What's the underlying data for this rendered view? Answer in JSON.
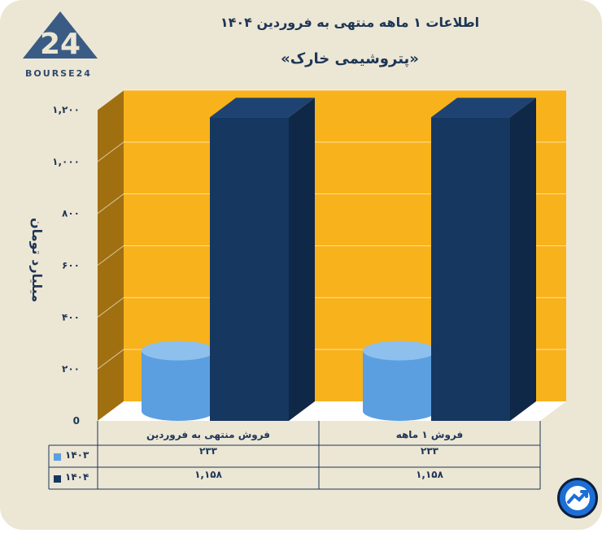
{
  "header": {
    "title": "اطلاعات ۱ ماهه منتهی به فروردین ۱۴۰۴",
    "subtitle": "«پتروشیمی خارک»"
  },
  "brand": {
    "name": "BOURSE24",
    "logo_mark": "24"
  },
  "colors": {
    "series_1403": "#5b9fe0",
    "series_1404": "#163760",
    "plot_back": "#f8b21c",
    "plot_side": "#a07010",
    "text": "#1d3656"
  },
  "chart_data": {
    "type": "bar",
    "title": "اطلاعات ۱ ماهه منتهی به فروردین ۱۴۰۴",
    "subtitle": "«پتروشیمی خارک»",
    "ylabel": "میلیارد تومان",
    "categories": [
      "فروش منتهی به  فروردین",
      "فروش ۱ ماهه"
    ],
    "series": [
      {
        "name": "۱۴۰۳",
        "values": [
          233,
          233
        ],
        "labels": [
          "۲۳۳",
          "۲۳۳"
        ],
        "shape": "cylinder"
      },
      {
        "name": "۱۴۰۴",
        "values": [
          1158,
          1158
        ],
        "labels": [
          "۱,۱۵۸",
          "۱,۱۵۸"
        ],
        "shape": "box"
      }
    ],
    "ylim": [
      0,
      1200
    ],
    "yticks": [
      0,
      200,
      400,
      600,
      800,
      1000,
      1200
    ],
    "ytick_labels": [
      "0",
      "۲۰۰",
      "۴۰۰",
      "۶۰۰",
      "۸۰۰",
      "۱,۰۰۰",
      "۱,۲۰۰"
    ],
    "grid": true,
    "legend": "data-table"
  }
}
